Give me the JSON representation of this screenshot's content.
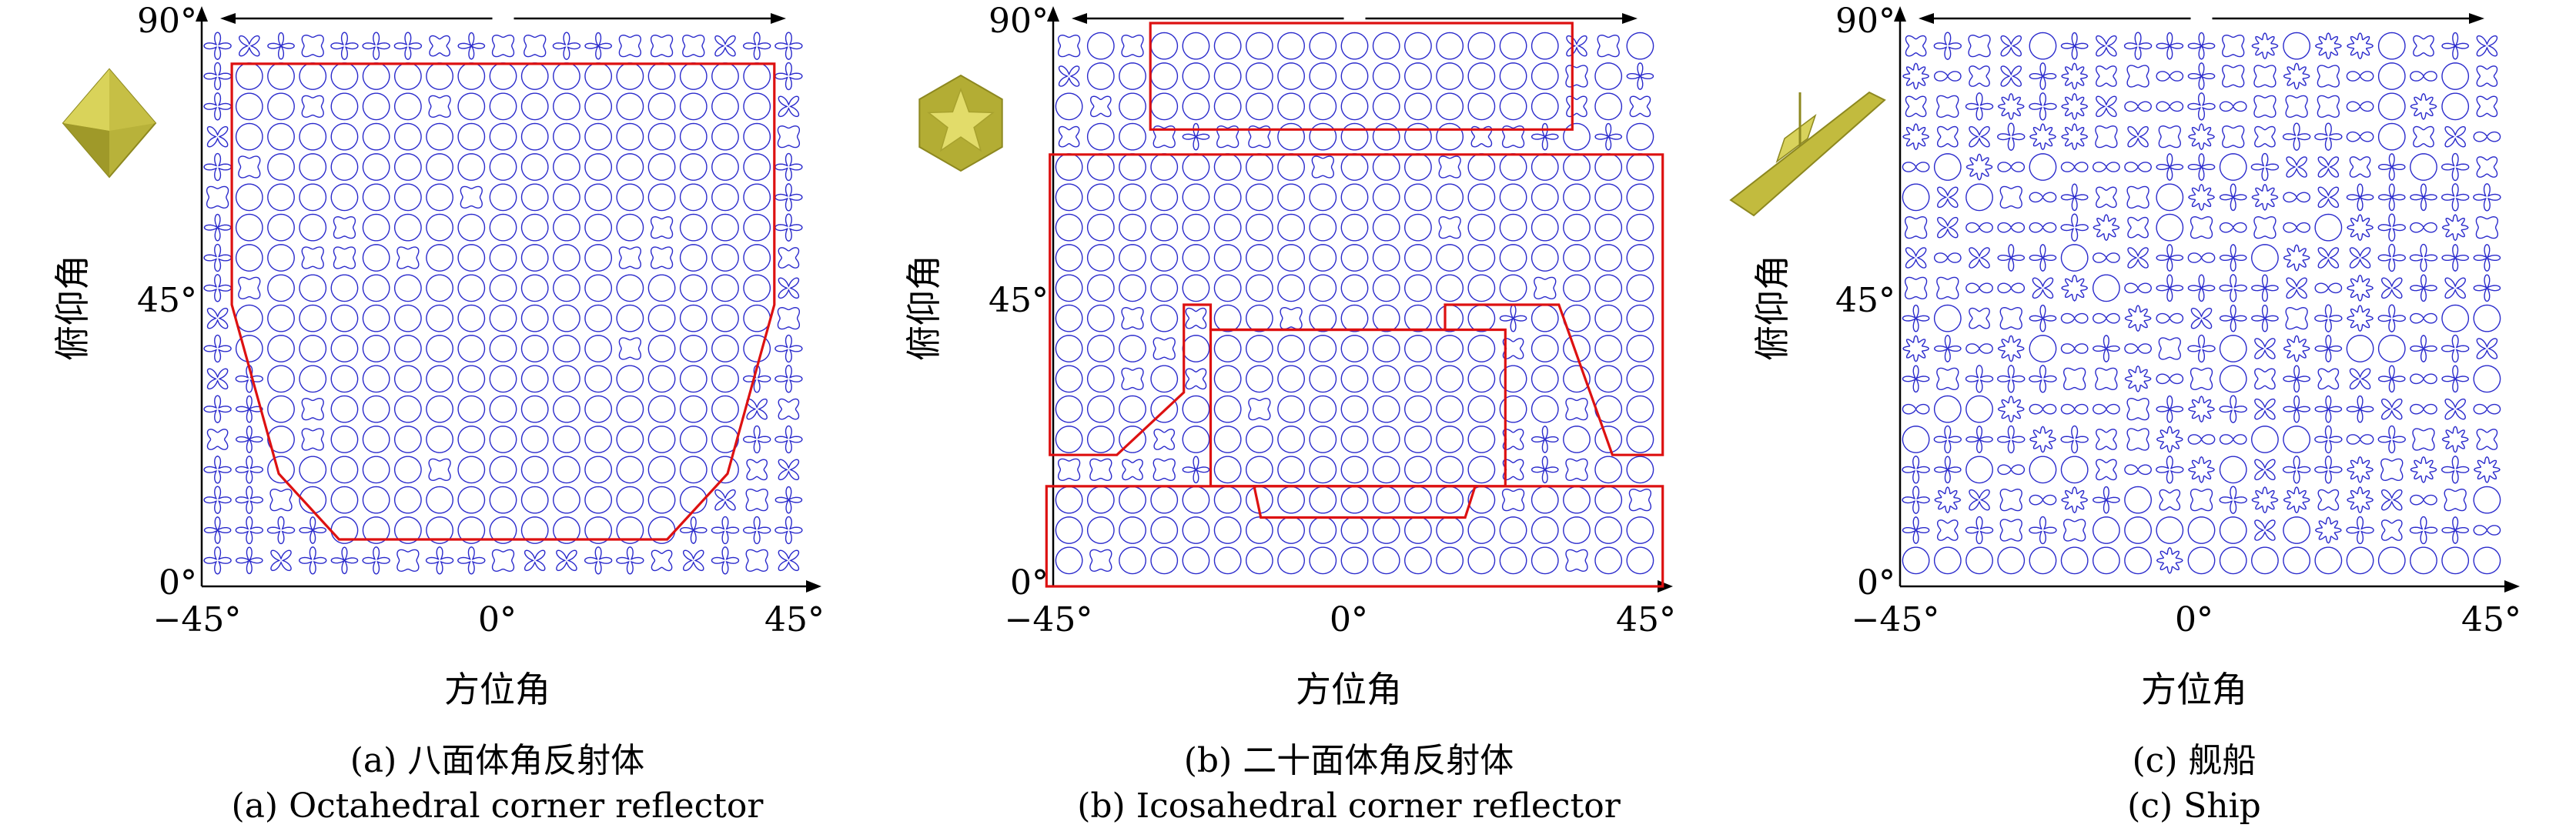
{
  "chart_data": [
    {
      "type": "scatter",
      "subtitle_zh": "(a) 八面体角反射体",
      "subtitle_en": "(a) Octahedral corner reflector",
      "xlabel": "方位角",
      "ylabel": "俯仰角",
      "xticks": [
        "−45°",
        "0°",
        "45°"
      ],
      "yticks": [
        "0°",
        "45°",
        "90°"
      ],
      "xlim": [
        -45,
        45
      ],
      "ylim": [
        0,
        90
      ],
      "grid": [
        19,
        18
      ],
      "marker_color": "#2b2bcc",
      "region_color": "#dd1111",
      "grid_seed": 17,
      "regions": [
        {
          "name": "main-region",
          "points": [
            [
              -40.5,
              83.5
            ],
            [
              40.5,
              83.5
            ],
            [
              40.5,
              45
            ],
            [
              33.5,
              18
            ],
            [
              24.5,
              7.5
            ],
            [
              -24.5,
              7.5
            ],
            [
              -33.5,
              18
            ],
            [
              -40.5,
              45
            ]
          ]
        }
      ],
      "icon": "octahedral-corner-reflector-icon"
    },
    {
      "type": "scatter",
      "subtitle_zh": "(b) 二十面体角反射体",
      "subtitle_en": "(b) Icosahedral corner reflector",
      "xlabel": "方位角",
      "ylabel": "俯仰角",
      "xticks": [
        "−45°",
        "0°",
        "45°"
      ],
      "yticks": [
        "0°",
        "45°",
        "90°"
      ],
      "xlim": [
        -45,
        45
      ],
      "ylim": [
        0,
        90
      ],
      "grid": [
        19,
        18
      ],
      "marker_color": "#2b2bcc",
      "region_color": "#dd1111",
      "grid_seed": 41,
      "regions": [
        {
          "name": "top-region",
          "points": [
            [
              -30.5,
              90
            ],
            [
              32.5,
              90
            ],
            [
              32.5,
              73
            ],
            [
              -30.5,
              73
            ]
          ]
        },
        {
          "name": "middle-region",
          "points": [
            [
              -45.5,
              69
            ],
            [
              46,
              69
            ],
            [
              46,
              21
            ],
            [
              38.5,
              21
            ],
            [
              30.5,
              45
            ],
            [
              13.5,
              45
            ],
            [
              13.5,
              41
            ],
            [
              -21.5,
              41
            ],
            [
              -21.5,
              45
            ],
            [
              -25.5,
              45
            ],
            [
              -25.5,
              31
            ],
            [
              -35.5,
              21
            ],
            [
              -45.5,
              21
            ]
          ]
        },
        {
          "name": "center-region",
          "points": [
            [
              -21.5,
              41
            ],
            [
              22.5,
              41
            ],
            [
              22.5,
              16
            ],
            [
              -21.5,
              16
            ]
          ]
        },
        {
          "name": "bottom-region",
          "points": [
            [
              -46,
              16
            ],
            [
              46,
              16
            ],
            [
              46,
              0
            ],
            [
              -46,
              0
            ]
          ]
        },
        {
          "name": "bottom-inner-region",
          "points": [
            [
              -15,
              16
            ],
            [
              18,
              16
            ],
            [
              16.5,
              11
            ],
            [
              -14,
              11
            ]
          ]
        }
      ],
      "icon": "icosahedral-corner-reflector-icon"
    },
    {
      "type": "scatter",
      "subtitle_zh": "(c) 舰船",
      "subtitle_en": "(c) Ship",
      "xlabel": "方位角",
      "ylabel": "俯仰角",
      "xticks": [
        "−45°",
        "0°",
        "45°"
      ],
      "yticks": [
        "0°",
        "45°",
        "90°"
      ],
      "xlim": [
        -45,
        45
      ],
      "ylim": [
        0,
        90
      ],
      "grid": [
        19,
        18
      ],
      "marker_color": "#2b2bcc",
      "grid_seed": 97,
      "regions": [],
      "icon": "ship-icon"
    }
  ]
}
